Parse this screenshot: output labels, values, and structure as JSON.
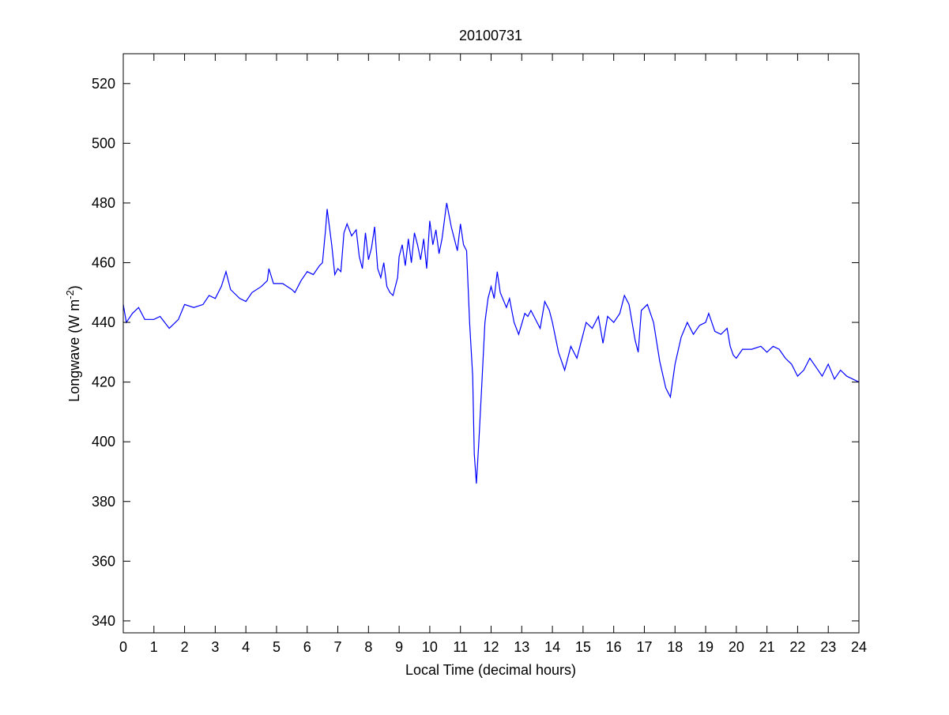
{
  "chart_data": {
    "type": "line",
    "title": "20100731",
    "xlabel": "Local Time (decimal hours)",
    "ylabel": "Longwave (W m",
    "ylabel_sup": "-2",
    "ylabel_end": ")",
    "xlim": [
      0,
      24
    ],
    "ylim": [
      336,
      530
    ],
    "xticks": [
      0,
      1,
      2,
      3,
      4,
      5,
      6,
      7,
      8,
      9,
      10,
      11,
      12,
      13,
      14,
      15,
      16,
      17,
      18,
      19,
      20,
      21,
      22,
      23,
      24
    ],
    "yticks": [
      340,
      360,
      380,
      400,
      420,
      440,
      460,
      480,
      500,
      520
    ],
    "grid": false,
    "line_color": "#0000ff",
    "series": [
      {
        "x": [
          0,
          0.1,
          0.3,
          0.5,
          0.7,
          1.0,
          1.2,
          1.5,
          1.8,
          2.0,
          2.3,
          2.6,
          2.8,
          3.0,
          3.2,
          3.35,
          3.5,
          3.8,
          4.0,
          4.2,
          4.5,
          4.7,
          4.75,
          4.9,
          5.2,
          5.5,
          5.6,
          5.8,
          6.0,
          6.2,
          6.4,
          6.5,
          6.6,
          6.65,
          6.8,
          6.9,
          7.0,
          7.1,
          7.2,
          7.3,
          7.45,
          7.6,
          7.7,
          7.8,
          7.9,
          8.0,
          8.1,
          8.2,
          8.3,
          8.4,
          8.5,
          8.6,
          8.7,
          8.8,
          8.95,
          9.0,
          9.1,
          9.2,
          9.3,
          9.4,
          9.5,
          9.6,
          9.7,
          9.8,
          9.9,
          10.0,
          10.1,
          10.2,
          10.3,
          10.4,
          10.5,
          10.55,
          10.7,
          10.8,
          10.9,
          11.0,
          11.1,
          11.2,
          11.3,
          11.4,
          11.45,
          11.52,
          11.6,
          11.7,
          11.8,
          11.9,
          12.0,
          12.1,
          12.2,
          12.3,
          12.5,
          12.6,
          12.75,
          12.9,
          13.1,
          13.2,
          13.3,
          13.5,
          13.6,
          13.75,
          13.9,
          14.0,
          14.2,
          14.4,
          14.6,
          14.8,
          15.0,
          15.1,
          15.3,
          15.5,
          15.65,
          15.8,
          16.0,
          16.2,
          16.35,
          16.5,
          16.7,
          16.8,
          16.9,
          17.1,
          17.3,
          17.5,
          17.7,
          17.85,
          18.0,
          18.2,
          18.4,
          18.6,
          18.8,
          19.0,
          19.1,
          19.3,
          19.5,
          19.7,
          19.8,
          19.9,
          20.0,
          20.2,
          20.5,
          20.8,
          21.0,
          21.2,
          21.4,
          21.6,
          21.8,
          22.0,
          22.2,
          22.4,
          22.6,
          22.8,
          23.0,
          23.2,
          23.4,
          23.6,
          23.8,
          24.0
        ],
        "y": [
          446,
          440,
          443,
          445,
          441,
          441,
          442,
          438,
          441,
          446,
          445,
          446,
          449,
          448,
          452,
          457,
          451,
          448,
          447,
          450,
          452,
          454,
          458,
          453,
          453,
          451,
          450,
          454,
          457,
          456,
          459,
          460,
          471,
          478,
          466,
          456,
          458,
          457,
          470,
          473,
          469,
          471,
          462,
          458,
          470,
          461,
          465,
          472,
          458,
          455,
          460,
          452,
          450,
          449,
          455,
          462,
          466,
          459,
          468,
          460,
          470,
          466,
          461,
          468,
          458,
          474,
          466,
          471,
          463,
          468,
          476,
          480,
          472,
          468,
          464,
          473,
          466,
          464,
          440,
          422,
          396,
          386,
          400,
          420,
          440,
          448,
          452,
          448,
          457,
          450,
          445,
          448,
          440,
          436,
          443,
          442,
          444,
          440,
          438,
          447,
          444,
          440,
          430,
          424,
          432,
          428,
          436,
          440,
          438,
          442,
          433,
          442,
          440,
          443,
          449,
          446,
          434,
          430,
          444,
          446,
          440,
          427,
          418,
          415,
          426,
          435,
          440,
          436,
          439,
          440,
          443,
          437,
          436,
          438,
          432,
          429,
          428,
          431,
          431,
          432,
          430,
          432,
          431,
          428,
          426,
          422,
          424,
          428,
          425,
          422,
          426,
          421,
          424,
          422,
          421,
          420
        ]
      }
    ]
  }
}
